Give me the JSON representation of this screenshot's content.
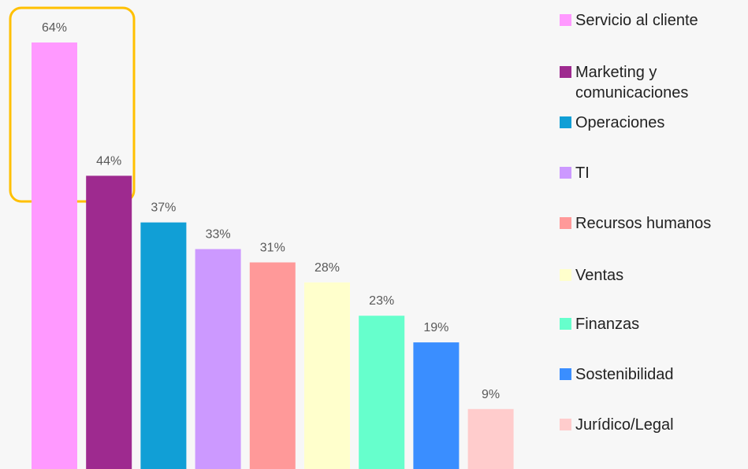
{
  "chart_data": {
    "type": "bar",
    "categories": [
      "Servicio al cliente",
      "Marketing y comunicaciones",
      "Operaciones",
      "TI",
      "Recursos humanos",
      "Ventas",
      "Finanzas",
      "Sostenibilidad",
      "Jurídico/Legal"
    ],
    "values": [
      64,
      44,
      37,
      33,
      31,
      28,
      23,
      19,
      9
    ],
    "value_labels": [
      "64%",
      "44%",
      "37%",
      "33%",
      "31%",
      "28%",
      "23%",
      "19%",
      "9%"
    ],
    "colors": [
      "#ff99ff",
      "#9e2a8f",
      "#119fd6",
      "#cc99ff",
      "#ff9999",
      "#ffffcc",
      "#66ffcc",
      "#3a8eff",
      "#ffcccc"
    ]
  }
}
